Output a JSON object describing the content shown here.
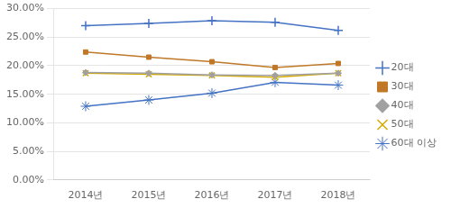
{
  "chart_data": {
    "type": "line",
    "categories": [
      "2014년",
      "2015년",
      "2016년",
      "2017년",
      "2018년"
    ],
    "series": [
      {
        "name": "20대",
        "color": "#4472C4",
        "marker": "plus",
        "values": [
          0.27,
          0.274,
          0.279,
          0.276,
          0.262
        ]
      },
      {
        "name": "30대",
        "color": "#C07828",
        "marker": "square",
        "values": [
          0.224,
          0.215,
          0.207,
          0.197,
          0.204
        ]
      },
      {
        "name": "40대",
        "color": "#A0A0A0",
        "marker": "diamond",
        "values": [
          0.188,
          0.187,
          0.184,
          0.183,
          0.187
        ]
      },
      {
        "name": "50대",
        "color": "#D4AA00",
        "marker": "x",
        "values": [
          0.187,
          0.185,
          0.183,
          0.18,
          0.187
        ]
      },
      {
        "name": "60대 이상",
        "color": "#4472C4",
        "marker": "star",
        "values": [
          0.129,
          0.14,
          0.152,
          0.171,
          0.166
        ]
      }
    ],
    "ylim": [
      0.0,
      0.3
    ],
    "yticks": [
      {
        "value": 0.0,
        "label": "0.00%"
      },
      {
        "value": 0.05,
        "label": "5.00%"
      },
      {
        "value": 0.1,
        "label": "10.00%"
      },
      {
        "value": 0.15,
        "label": "15.00%"
      },
      {
        "value": 0.2,
        "label": "20.00%"
      },
      {
        "value": 0.25,
        "label": "25.00%"
      },
      {
        "value": 0.3,
        "label": "30.00%"
      }
    ],
    "grid": "y",
    "legend": "right"
  }
}
